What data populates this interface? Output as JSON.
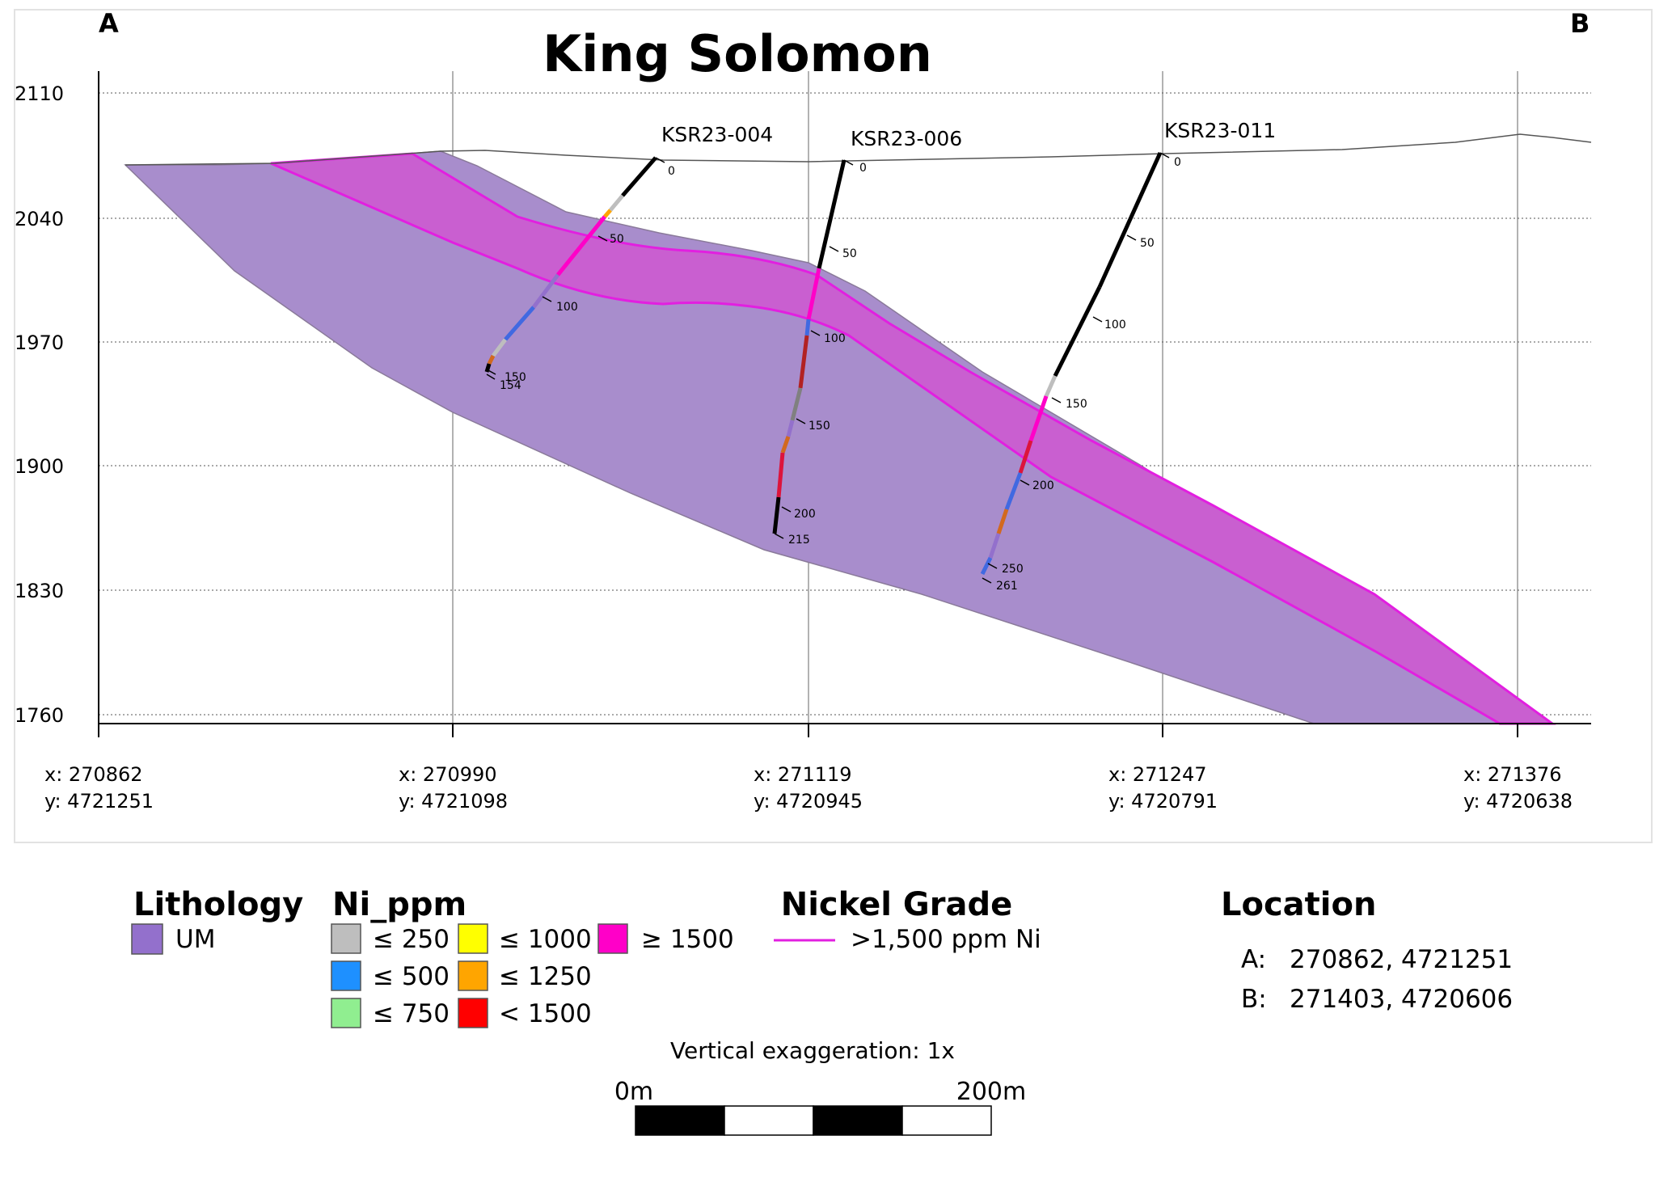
{
  "section": {
    "title": "King Solomon",
    "corner_labels": {
      "left": "A",
      "right": "B"
    },
    "elevation_ticks": [
      "2110",
      "2040",
      "1970",
      "1900",
      "1830",
      "1760"
    ],
    "coord_labels": [
      {
        "x": "x: 270862",
        "y": "y: 4721251"
      },
      {
        "x": "x: 270990",
        "y": "y: 4721098"
      },
      {
        "x": "x: 271119",
        "y": "y: 4720945"
      },
      {
        "x": "x: 271247",
        "y": "y: 4720791"
      },
      {
        "x": "x: 271376",
        "y": "y: 4720638"
      }
    ],
    "drillholes": [
      {
        "name": "KSR23-004",
        "depths": [
          "0",
          "50",
          "100",
          "150",
          "154"
        ]
      },
      {
        "name": "KSR23-006",
        "depths": [
          "0",
          "50",
          "100",
          "150",
          "200",
          "215"
        ]
      },
      {
        "name": "KSR23-011",
        "depths": [
          "0",
          "50",
          "100",
          "150",
          "200",
          "250",
          "261"
        ]
      }
    ]
  },
  "legend": {
    "lithology": {
      "title": "Lithology",
      "items": [
        {
          "label": "UM",
          "color": "#9370cc"
        }
      ]
    },
    "ni_ppm": {
      "title": "Ni_ppm",
      "items": [
        {
          "label": "≤ 250",
          "color": "#bebebe"
        },
        {
          "label": "≤ 500",
          "color": "#1e90ff"
        },
        {
          "label": "≤ 750",
          "color": "#90ee90"
        },
        {
          "label": "≤ 1000",
          "color": "#ffff00"
        },
        {
          "label": "≤ 1250",
          "color": "#ffa500"
        },
        {
          "label": "< 1500",
          "color": "#ff0000"
        },
        {
          "label": "≥ 1500",
          "color": "#ff00c8"
        }
      ]
    },
    "nickel_grade": {
      "title": "Nickel Grade",
      "label": ">1,500 ppm Ni",
      "color": "#e21fe0"
    },
    "location": {
      "title": "Location",
      "rows": [
        {
          "key": "A:",
          "value": "270862, 4721251"
        },
        {
          "key": "B:",
          "value": "271403, 4720606"
        }
      ]
    },
    "vertical_exaggeration": "Vertical exaggeration: 1x",
    "scale_bar": {
      "start": "0m",
      "end": "200m"
    }
  },
  "colors": {
    "um_fill": "#a88dcc",
    "high_grade_fill": "#c95fd0",
    "high_grade_line": "#e21fe0"
  }
}
